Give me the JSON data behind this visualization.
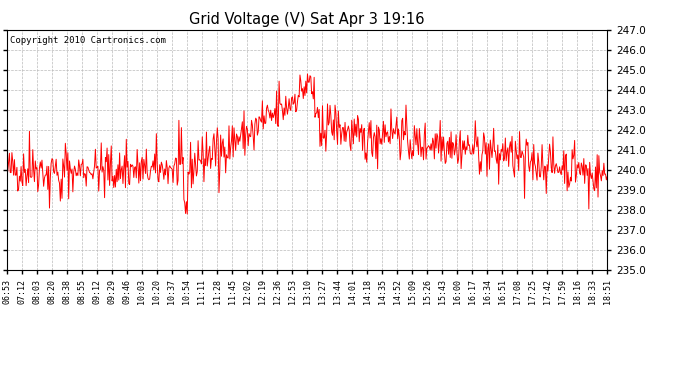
{
  "title": "Grid Voltage (V) Sat Apr 3 19:16",
  "copyright": "Copyright 2010 Cartronics.com",
  "line_color": "#ff0000",
  "bg_color": "#ffffff",
  "plot_bg_color": "#ffffff",
  "grid_color": "#bbbbbb",
  "ylim": [
    235.0,
    247.0
  ],
  "yticks": [
    235.0,
    236.0,
    237.0,
    238.0,
    239.0,
    240.0,
    241.0,
    242.0,
    243.0,
    244.0,
    245.0,
    246.0,
    247.0
  ],
  "xtick_labels": [
    "06:53",
    "07:12",
    "08:03",
    "08:20",
    "08:38",
    "08:55",
    "09:12",
    "09:29",
    "09:46",
    "10:03",
    "10:20",
    "10:37",
    "10:54",
    "11:11",
    "11:28",
    "11:45",
    "12:02",
    "12:19",
    "12:36",
    "12:53",
    "13:10",
    "13:27",
    "13:44",
    "14:01",
    "14:18",
    "14:35",
    "14:52",
    "15:09",
    "15:26",
    "15:43",
    "16:00",
    "16:17",
    "16:34",
    "16:51",
    "17:08",
    "17:25",
    "17:42",
    "17:59",
    "18:16",
    "18:33",
    "18:51"
  ],
  "seed": 42
}
